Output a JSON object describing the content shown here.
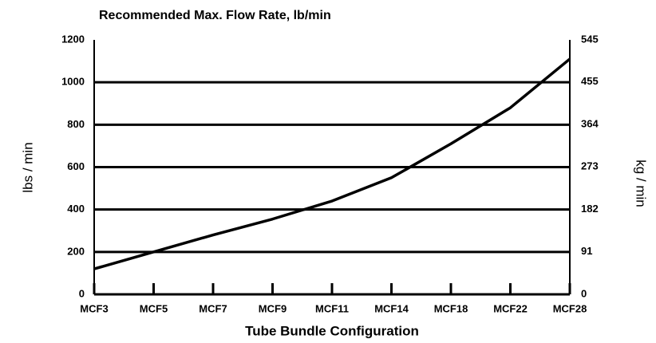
{
  "chart_data": {
    "type": "line",
    "title": "Recommended Max. Flow Rate, lb/min",
    "x_label": "Tube Bundle Configuration",
    "y_label": "lbs / min",
    "y2_label": "kg / min",
    "categories": [
      "MCF3",
      "MCF5",
      "MCF7",
      "MCF9",
      "MCF11",
      "MCF14",
      "MCF18",
      "MCF22",
      "MCF28"
    ],
    "series": [
      {
        "name": "Recommended Max. Flow Rate",
        "color": "#000000",
        "values": [
          120,
          200,
          280,
          355,
          440,
          550,
          710,
          880,
          1110
        ]
      }
    ],
    "ylim": [
      0,
      1200
    ],
    "yticks": [
      0,
      200,
      400,
      600,
      800,
      1000,
      1200
    ],
    "y2lim": [
      0,
      545
    ],
    "y2ticks": [
      0,
      91,
      182,
      273,
      364,
      455,
      545
    ],
    "grid": true
  }
}
